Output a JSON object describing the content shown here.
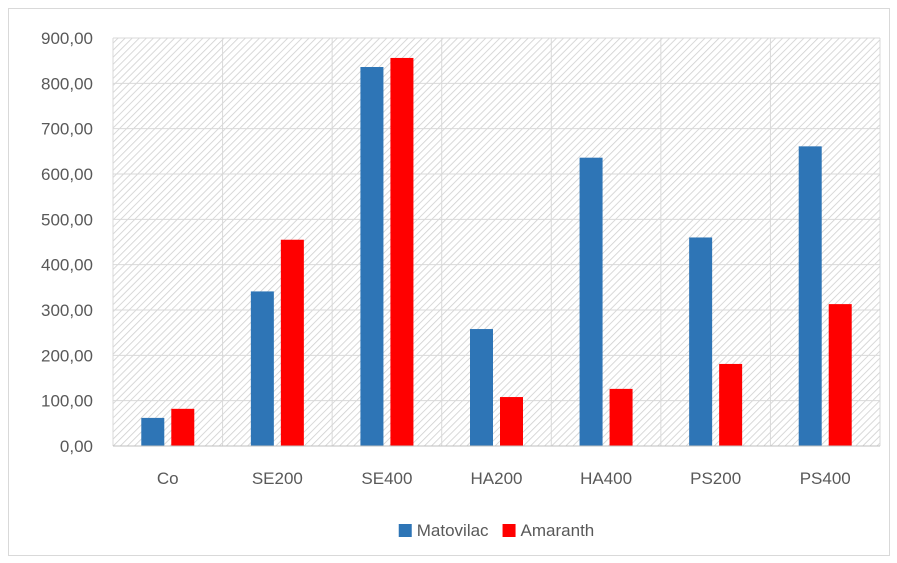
{
  "chart_data": {
    "type": "bar",
    "title": "",
    "xlabel": "",
    "ylabel": "",
    "categories": [
      "Co",
      "SE200",
      "SE400",
      "HA200",
      "HA400",
      "PS200",
      "PS400"
    ],
    "series": [
      {
        "name": "Matovilac",
        "color": "#2e75b6",
        "values": [
          62,
          341,
          836,
          258,
          636,
          460,
          661
        ]
      },
      {
        "name": "Amaranth",
        "color": "#ff0000",
        "values": [
          82,
          455,
          856,
          108,
          126,
          181,
          313
        ]
      }
    ],
    "ylim": [
      0,
      900
    ],
    "yticks": [
      "0,00",
      "100,00",
      "200,00",
      "300,00",
      "400,00",
      "500,00",
      "600,00",
      "700,00",
      "800,00",
      "900,00"
    ],
    "grid": true,
    "legend_position": "bottom"
  }
}
